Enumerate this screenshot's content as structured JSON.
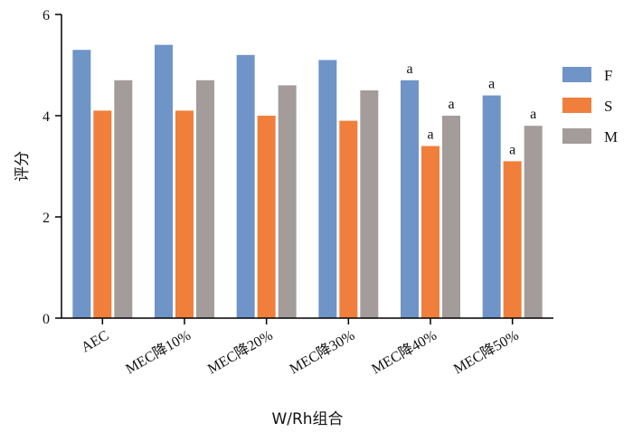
{
  "chart_data": {
    "type": "bar",
    "title": "",
    "xlabel": "W/Rh组合",
    "ylabel": "评分",
    "ylim": [
      0,
      6
    ],
    "yticks": [
      0,
      2,
      4,
      6
    ],
    "grid": false,
    "legend_position": "right",
    "categories": [
      "AEC",
      "MEC降10%",
      "MEC降20%",
      "MEC降30%",
      "MEC降40%",
      "MEC降50%"
    ],
    "series": [
      {
        "name": "F",
        "color": "#6f94c7",
        "values": [
          5.3,
          5.4,
          5.2,
          5.1,
          4.7,
          4.4
        ],
        "annotations": [
          "",
          "",
          "",
          "",
          "a",
          "a"
        ]
      },
      {
        "name": "S",
        "color": "#f07f3c",
        "values": [
          4.1,
          4.1,
          4.0,
          3.9,
          3.4,
          3.1
        ],
        "annotations": [
          "",
          "",
          "",
          "",
          "a",
          "a"
        ]
      },
      {
        "name": "M",
        "color": "#a39c9b",
        "values": [
          4.7,
          4.7,
          4.6,
          4.5,
          4.0,
          3.8
        ],
        "annotations": [
          "",
          "",
          "",
          "",
          "a",
          "a"
        ]
      }
    ]
  }
}
